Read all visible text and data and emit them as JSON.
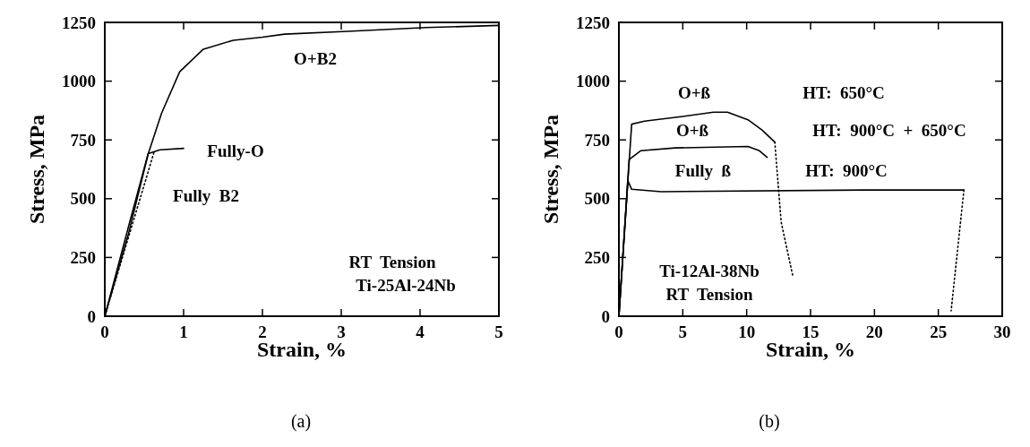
{
  "chart_data": [
    {
      "type": "line",
      "xlabel": "Strain, %",
      "ylabel": "Stress, MPa",
      "xlim": [
        0,
        5
      ],
      "xticks": [
        0,
        1,
        2,
        3,
        4,
        5
      ],
      "ylim": [
        0,
        1250
      ],
      "yticks": [
        0,
        250,
        500,
        750,
        1000,
        1250
      ],
      "grid": false,
      "marker": "none",
      "series": [
        {
          "name": "O+B2",
          "color": "#000000",
          "line_style": "solid",
          "x": [
            0,
            0.3,
            0.55,
            0.72,
            0.95,
            1.25,
            1.63,
            2.0,
            2.28,
            3.08,
            4.07,
            5
          ],
          "values": [
            0,
            350,
            690,
            863,
            1040,
            1136,
            1174,
            1187,
            1200,
            1212,
            1228,
            1237
          ]
        },
        {
          "name": "Fully-O",
          "color": "#000000",
          "line_style": "solid",
          "x": [
            0,
            0.3,
            0.55,
            0.7,
            1.0
          ],
          "values": [
            0,
            380,
            692,
            708,
            714
          ]
        },
        {
          "name": "Fully  B2",
          "color": "#000000",
          "line_style": "dotted",
          "x": [
            0,
            0.63
          ],
          "values": [
            0,
            704
          ]
        }
      ],
      "annotations": [
        "RT  Tension",
        "Ti-25Al-24Nb",
        "(a)"
      ]
    },
    {
      "type": "line",
      "xlabel": "Strain, %",
      "ylabel": "Stress, MPa",
      "xlim": [
        0,
        30
      ],
      "xticks": [
        0,
        5,
        10,
        15,
        20,
        25,
        30
      ],
      "ylim": [
        0,
        1250
      ],
      "yticks": [
        0,
        250,
        500,
        750,
        1000,
        1250
      ],
      "grid": false,
      "marker": "none",
      "series": [
        {
          "name": "O+ß",
          "color": "#000000",
          "line_style": "solid",
          "x": [
            0,
            1.0,
            2,
            5,
            7.4,
            8.5,
            10.1,
            11.2,
            12.2
          ],
          "values": [
            0,
            817,
            830,
            850,
            868,
            868,
            836,
            792,
            741
          ]
        },
        {
          "color": "#000000",
          "line_style": "dotted",
          "x": [
            12.2,
            12.7,
            13.6
          ],
          "values": [
            741,
            400,
            174
          ]
        },
        {
          "name": "O+ß",
          "color": "#000000",
          "line_style": "solid",
          "x": [
            0,
            0.8,
            1.7,
            4.4,
            10.1,
            11,
            11.6
          ],
          "values": [
            0,
            666,
            704,
            716,
            722,
            704,
            676
          ]
        },
        {
          "name": "Fully  ß",
          "color": "#000000",
          "line_style": "solid",
          "x": [
            0,
            0.7,
            1.0,
            3.3,
            19.2,
            27
          ],
          "values": [
            0,
            577,
            540,
            530,
            537,
            537
          ]
        },
        {
          "color": "#000000",
          "line_style": "dotted",
          "x": [
            27,
            26
          ],
          "values": [
            537,
            23
          ]
        }
      ],
      "annotations": [
        "HT:  650°C",
        "HT:  900°C  +  650°C",
        "HT:  900°C",
        "Ti-12Al-38Nb",
        "RT  Tension",
        "(b)"
      ]
    }
  ]
}
